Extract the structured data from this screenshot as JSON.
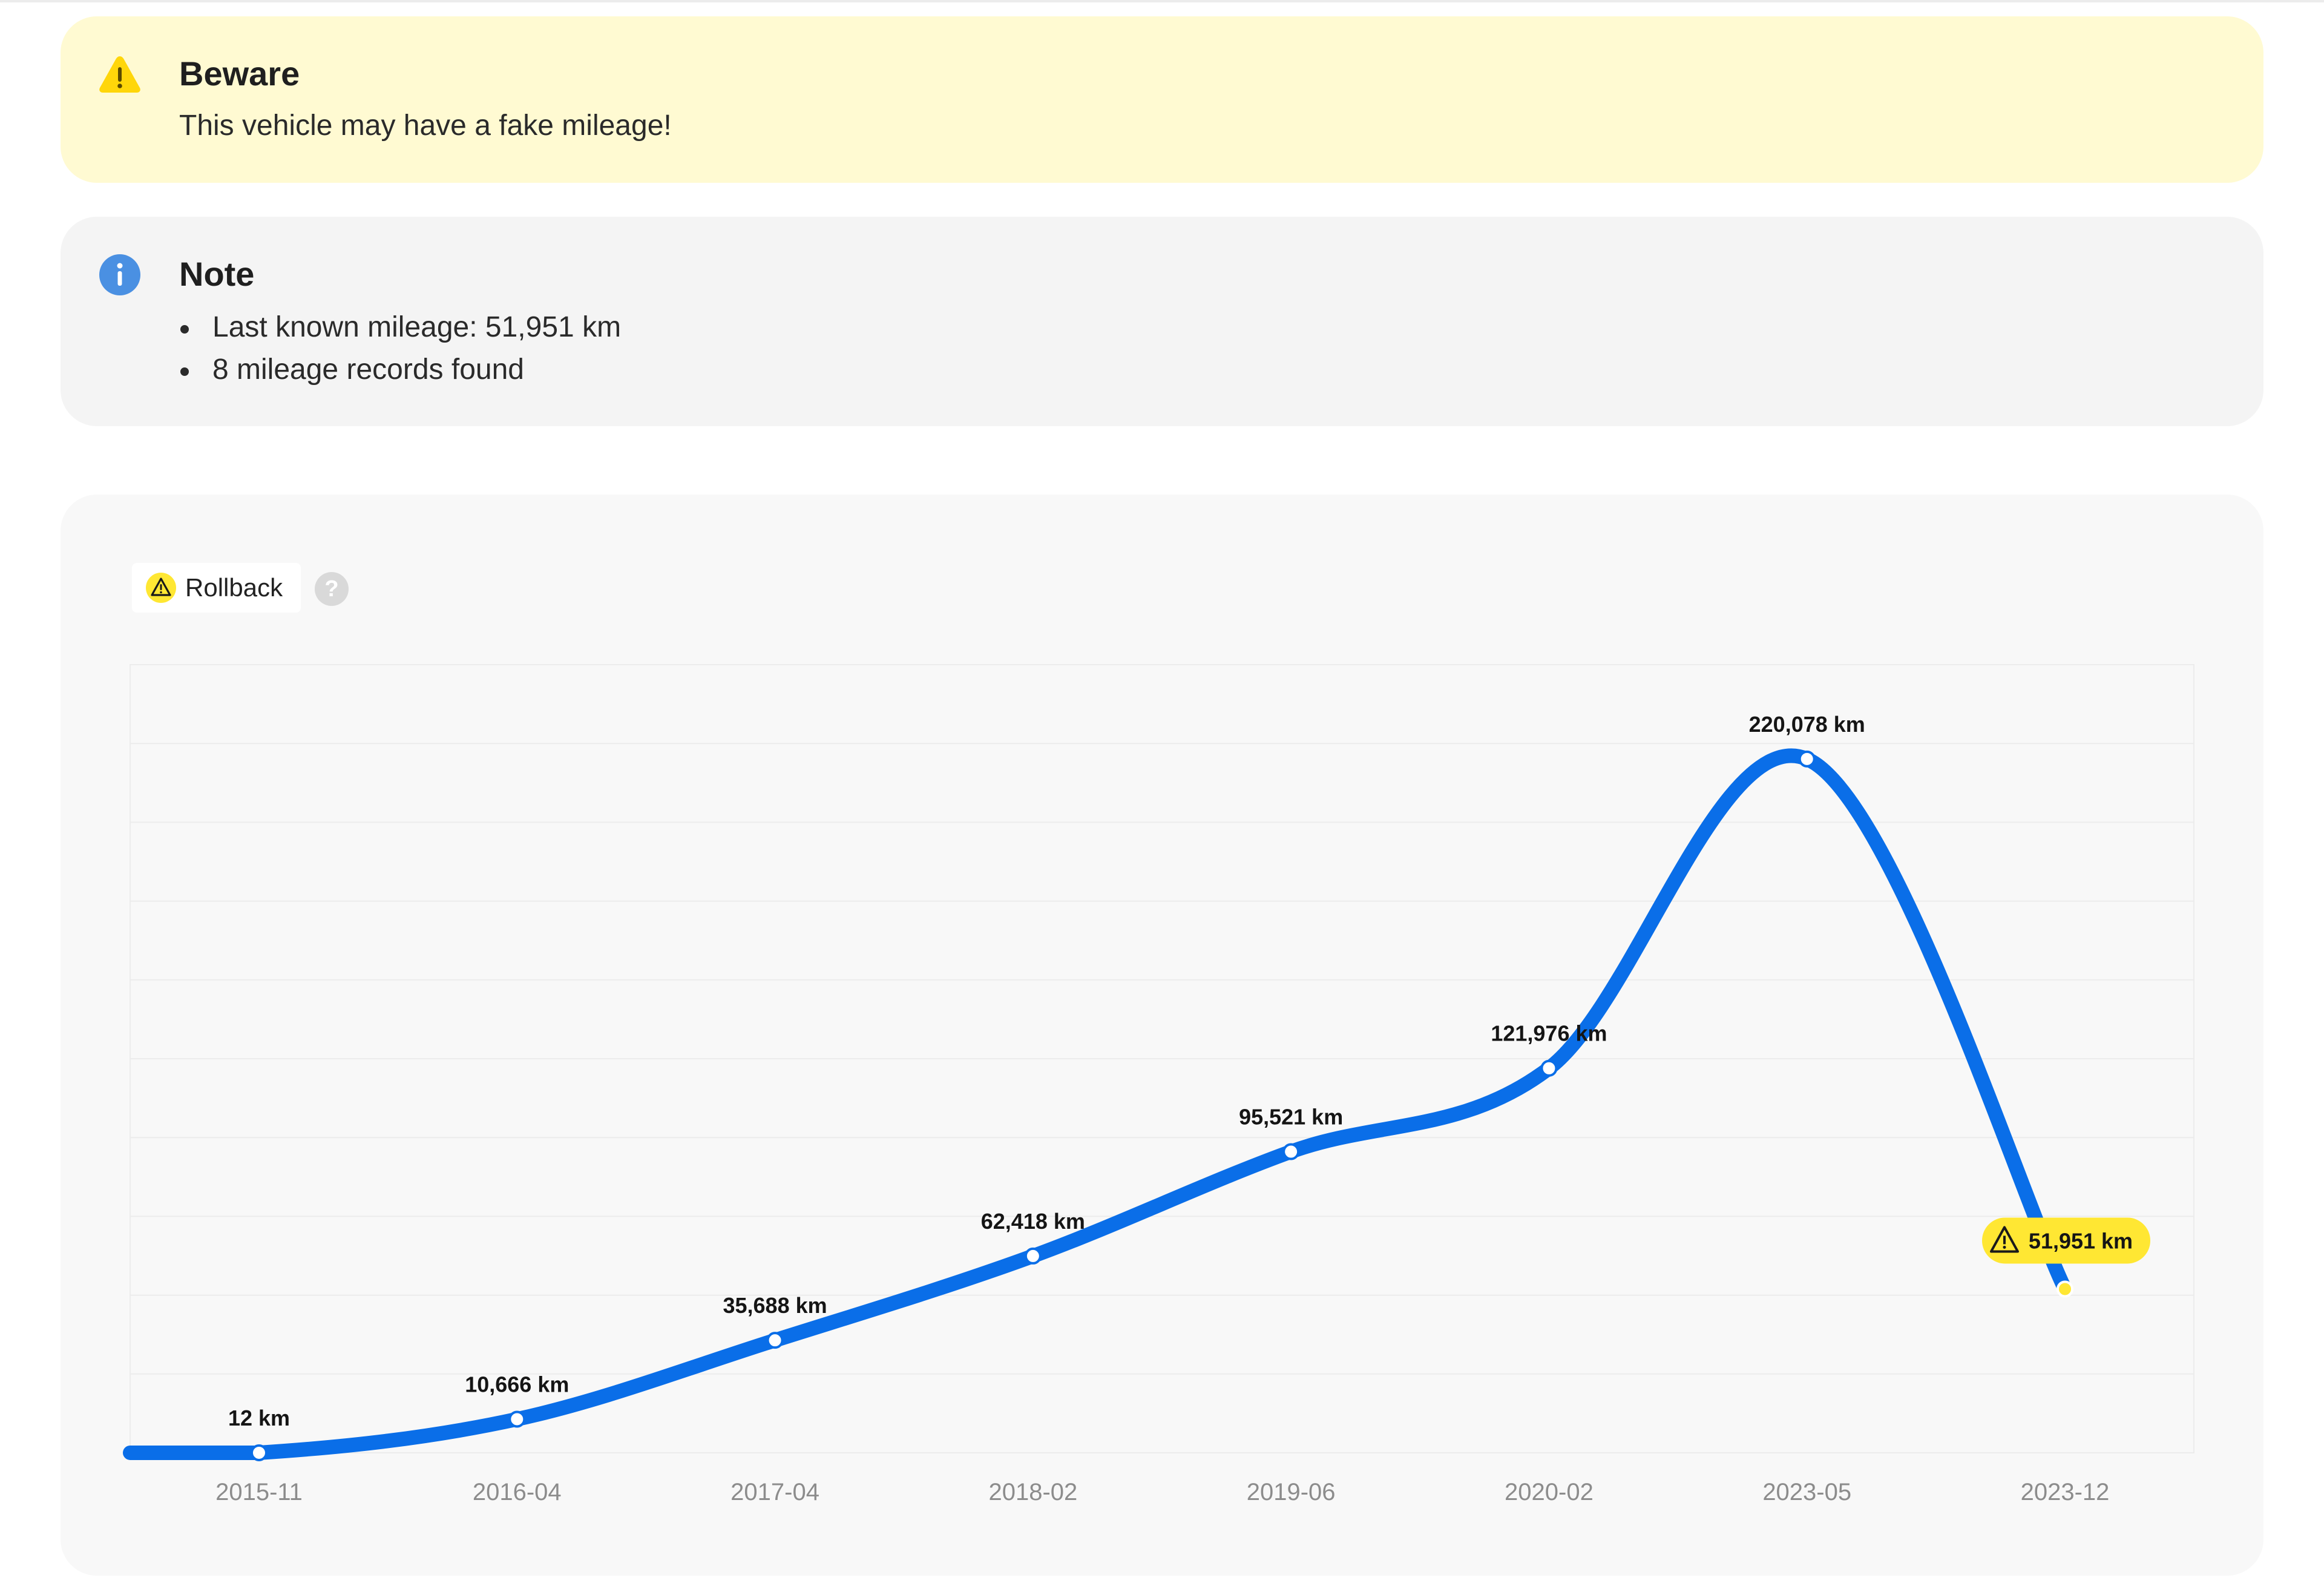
{
  "warning": {
    "title": "Beware",
    "message": "This vehicle may have a fake mileage!",
    "icon": "warning-triangle-icon",
    "color": "#ffd60a"
  },
  "note": {
    "title": "Note",
    "icon": "info-icon",
    "color": "#4a90e2",
    "items": [
      "Last known mileage: 51,951 km",
      "8 mileage records found"
    ]
  },
  "legend": {
    "rollback_label": "Rollback",
    "rollback_icon": "warning-triangle-icon",
    "help_icon": "help-icon",
    "help_glyph": "?"
  },
  "chart_data": {
    "type": "line",
    "categories": [
      "2015-11",
      "2016-04",
      "2017-04",
      "2018-02",
      "2019-06",
      "2020-02",
      "2023-05",
      "2023-12"
    ],
    "values": [
      12,
      10666,
      35688,
      62418,
      95521,
      121976,
      220078,
      51951
    ],
    "labels": [
      "12 km",
      "10,666 km",
      "35,688 km",
      "62,418 km",
      "95,521 km",
      "121,976 km",
      "220,078 km",
      "51,951 km"
    ],
    "rollback_index": 7,
    "ylim": [
      0,
      250000
    ],
    "grid": true,
    "line_color": "#0a6ee8",
    "rollback_color": "#ffe733"
  }
}
